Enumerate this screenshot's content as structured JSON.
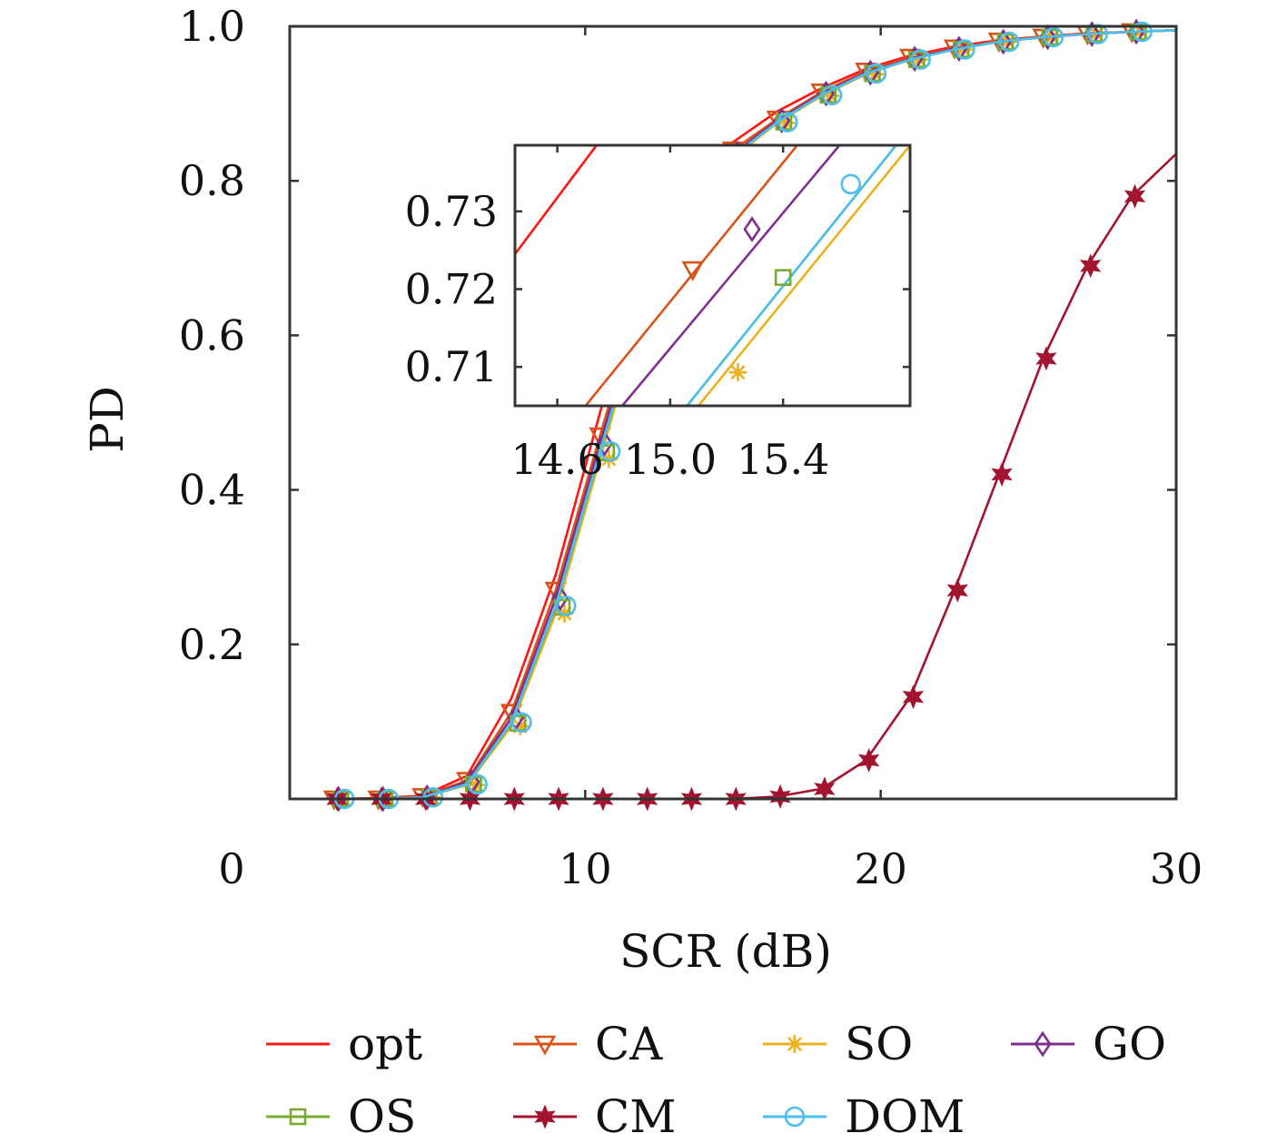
{
  "colors": {
    "opt": "#ff1414",
    "CA": "#d95319",
    "SO": "#edb120",
    "GO": "#7e2f8e",
    "OS": "#77ac30",
    "CM": "#a2142f",
    "DOM": "#4dbeee",
    "axes": "#333333"
  },
  "chart_data": [
    {
      "type": "line",
      "title": "",
      "xlabel": "SCR (dB)",
      "ylabel": "PD",
      "xlim": [
        0,
        30
      ],
      "ylim": [
        0,
        1
      ],
      "xticks": [
        0,
        10,
        20,
        30
      ],
      "xtick_labels": [
        "0",
        "10",
        "20",
        "30"
      ],
      "yticks": [
        0.2,
        0.4,
        0.6,
        0.8,
        1.0
      ],
      "ytick_labels": [
        "0.2",
        "0.4",
        "0.6",
        "0.8",
        "1.0"
      ],
      "grid": false,
      "legend_position": "bottom",
      "x": [
        0,
        1.5,
        3,
        4.5,
        6,
        7.5,
        9,
        10.5,
        12,
        13.5,
        15,
        16.5,
        18,
        19.5,
        21,
        22.5,
        24,
        25.5,
        27,
        28.5,
        30
      ],
      "series": [
        {
          "name": "opt",
          "marker": "none",
          "values": [
            0.0,
            0.0,
            0.001,
            0.004,
            0.03,
            0.13,
            0.29,
            0.5,
            0.69,
            0.8,
            0.85,
            0.89,
            0.92,
            0.945,
            0.962,
            0.974,
            0.982,
            0.987,
            0.991,
            0.993,
            0.995
          ]
        },
        {
          "name": "CA",
          "marker": "triangle-down",
          "values": [
            0.0,
            0.0,
            0.0,
            0.003,
            0.024,
            0.112,
            0.27,
            0.47,
            0.665,
            0.78,
            0.84,
            0.88,
            0.915,
            0.942,
            0.96,
            0.972,
            0.981,
            0.986,
            0.99,
            0.993,
            0.995
          ]
        },
        {
          "name": "SO",
          "marker": "asterisk",
          "values": [
            0.0,
            0.0,
            0.0,
            0.002,
            0.018,
            0.094,
            0.24,
            0.44,
            0.64,
            0.77,
            0.83,
            0.875,
            0.91,
            0.938,
            0.957,
            0.97,
            0.98,
            0.986,
            0.99,
            0.993,
            0.995
          ]
        },
        {
          "name": "GO",
          "marker": "diamond",
          "values": [
            0.0,
            0.0,
            0.0,
            0.002,
            0.022,
            0.105,
            0.26,
            0.46,
            0.655,
            0.775,
            0.835,
            0.878,
            0.913,
            0.94,
            0.958,
            0.971,
            0.98,
            0.986,
            0.99,
            0.993,
            0.995
          ]
        },
        {
          "name": "OS",
          "marker": "square",
          "values": [
            0.0,
            0.0,
            0.0,
            0.002,
            0.019,
            0.098,
            0.248,
            0.448,
            0.645,
            0.772,
            0.832,
            0.876,
            0.911,
            0.939,
            0.957,
            0.97,
            0.98,
            0.986,
            0.99,
            0.993,
            0.995
          ]
        },
        {
          "name": "CM",
          "marker": "hexagram",
          "values": [
            0.0,
            0.0,
            0.0,
            0.0,
            0.0,
            0.0,
            0.0,
            0.0,
            0.0,
            0.0,
            0.0,
            0.003,
            0.013,
            0.05,
            0.132,
            0.27,
            0.42,
            0.57,
            0.69,
            0.78,
            0.835
          ]
        },
        {
          "name": "DOM",
          "marker": "circle",
          "values": [
            0.0,
            0.0,
            0.0,
            0.002,
            0.019,
            0.099,
            0.25,
            0.45,
            0.646,
            0.772,
            0.832,
            0.876,
            0.911,
            0.939,
            0.957,
            0.97,
            0.98,
            0.986,
            0.99,
            0.993,
            0.995
          ]
        }
      ]
    },
    {
      "type": "line",
      "title": "",
      "xlim": [
        14.45,
        15.85
      ],
      "ylim": [
        0.705,
        0.7385
      ],
      "xticks": [
        14.6,
        15.0,
        15.4
      ],
      "xtick_labels": [
        "14.6",
        "15.0",
        "15.4"
      ],
      "yticks": [
        0.71,
        0.72,
        0.73
      ],
      "ytick_labels": [
        "0.71",
        "0.72",
        "0.73"
      ],
      "grid": false,
      "series": [
        {
          "name": "opt",
          "x": [
            14.45,
            14.76
          ],
          "values": [
            0.7245,
            0.7395
          ]
        },
        {
          "name": "CA",
          "x": [
            14.7,
            15.45
          ],
          "values": [
            0.705,
            0.7385
          ]
        },
        {
          "name": "GO",
          "x": [
            14.83,
            15.6
          ],
          "values": [
            0.705,
            0.7385
          ]
        },
        {
          "name": "OS",
          "x": [
            15.06,
            15.8
          ],
          "values": [
            0.705,
            0.7385
          ]
        },
        {
          "name": "DOM",
          "x": [
            15.06,
            15.8
          ],
          "values": [
            0.705,
            0.7385
          ]
        },
        {
          "name": "SO",
          "x": [
            15.1,
            15.85
          ],
          "values": [
            0.705,
            0.7385
          ]
        }
      ],
      "markers": [
        {
          "series": "CA",
          "x": 15.08,
          "y": 0.7225
        },
        {
          "series": "GO",
          "x": 15.29,
          "y": 0.7277
        },
        {
          "series": "OS",
          "x": 15.4,
          "y": 0.7215
        },
        {
          "series": "DOM",
          "x": 15.64,
          "y": 0.7335
        },
        {
          "series": "SO",
          "x": 15.24,
          "y": 0.7093
        }
      ]
    }
  ]
}
